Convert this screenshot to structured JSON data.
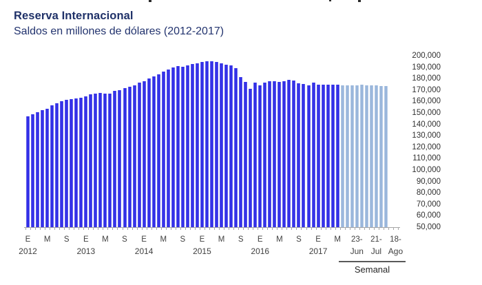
{
  "header": {
    "title": "Reserva Internacional",
    "subtitle": "Saldos en millones de dólares (2012-2017)"
  },
  "chart_data": {
    "type": "bar",
    "title": "Reserva Internacional",
    "subtitle": "Saldos en millones de dólares (2012-2017)",
    "unit": "millones de dólares",
    "grid": false,
    "legend_position": "none",
    "y_axis": {
      "min": 50000,
      "max": 200000,
      "step": 10000,
      "position": "right",
      "tick_format": "thousands-comma"
    },
    "x_axis": {
      "total_slots": 77,
      "trailing_empty_slots": 2,
      "tick_labels": [
        {
          "slot": 0,
          "line1": "E",
          "line2": "2012"
        },
        {
          "slot": 4,
          "line1": "M"
        },
        {
          "slot": 8,
          "line1": "S"
        },
        {
          "slot": 12,
          "line1": "E",
          "line2": "2013"
        },
        {
          "slot": 16,
          "line1": "M"
        },
        {
          "slot": 20,
          "line1": "S"
        },
        {
          "slot": 24,
          "line1": "E",
          "line2": "2014"
        },
        {
          "slot": 28,
          "line1": "M"
        },
        {
          "slot": 32,
          "line1": "S"
        },
        {
          "slot": 36,
          "line1": "E",
          "line2": "2015"
        },
        {
          "slot": 40,
          "line1": "M"
        },
        {
          "slot": 44,
          "line1": "S"
        },
        {
          "slot": 48,
          "line1": "E",
          "line2": "2016"
        },
        {
          "slot": 52,
          "line1": "M"
        },
        {
          "slot": 56,
          "line1": "S"
        },
        {
          "slot": 60,
          "line1": "E",
          "line2": "2017"
        },
        {
          "slot": 64,
          "line1": "M"
        },
        {
          "slot": 68,
          "line1": "23-",
          "line2": "Jun"
        },
        {
          "slot": 72,
          "line1": "21-",
          "line2": "Jul"
        },
        {
          "slot": 76,
          "line1": "18-",
          "line2": "Ago"
        }
      ]
    },
    "series": [
      {
        "id": "monthly",
        "period": "Ene 2012 - May 2017",
        "color": "#1a16de",
        "values": [
          147200,
          148800,
          150400,
          152500,
          153500,
          156900,
          158500,
          160100,
          161500,
          161900,
          162500,
          163500,
          164700,
          166200,
          167000,
          167600,
          167100,
          166800,
          169200,
          170000,
          171900,
          172800,
          174300,
          176500,
          178000,
          180200,
          181900,
          183900,
          186300,
          188200,
          189800,
          190900,
          190300,
          191300,
          193000,
          193200,
          194700,
          195200,
          195400,
          194800,
          193300,
          192400,
          191500,
          189300,
          181500,
          177200,
          171000,
          176700,
          174200,
          176800,
          177800,
          177600,
          177200,
          177600,
          178800,
          178500,
          176100,
          175200,
          174000,
          176500,
          174700,
          175000,
          174900,
          174800,
          174900
        ]
      },
      {
        "id": "weekly",
        "period": "Jun 2017 - Ago 2017",
        "color": "#95b3d7",
        "values": [
          174000,
          174100,
          174300,
          174400,
          174500,
          174300,
          174200,
          174000,
          173800,
          173600
        ]
      }
    ],
    "weekly_group_label": "Semanal"
  }
}
